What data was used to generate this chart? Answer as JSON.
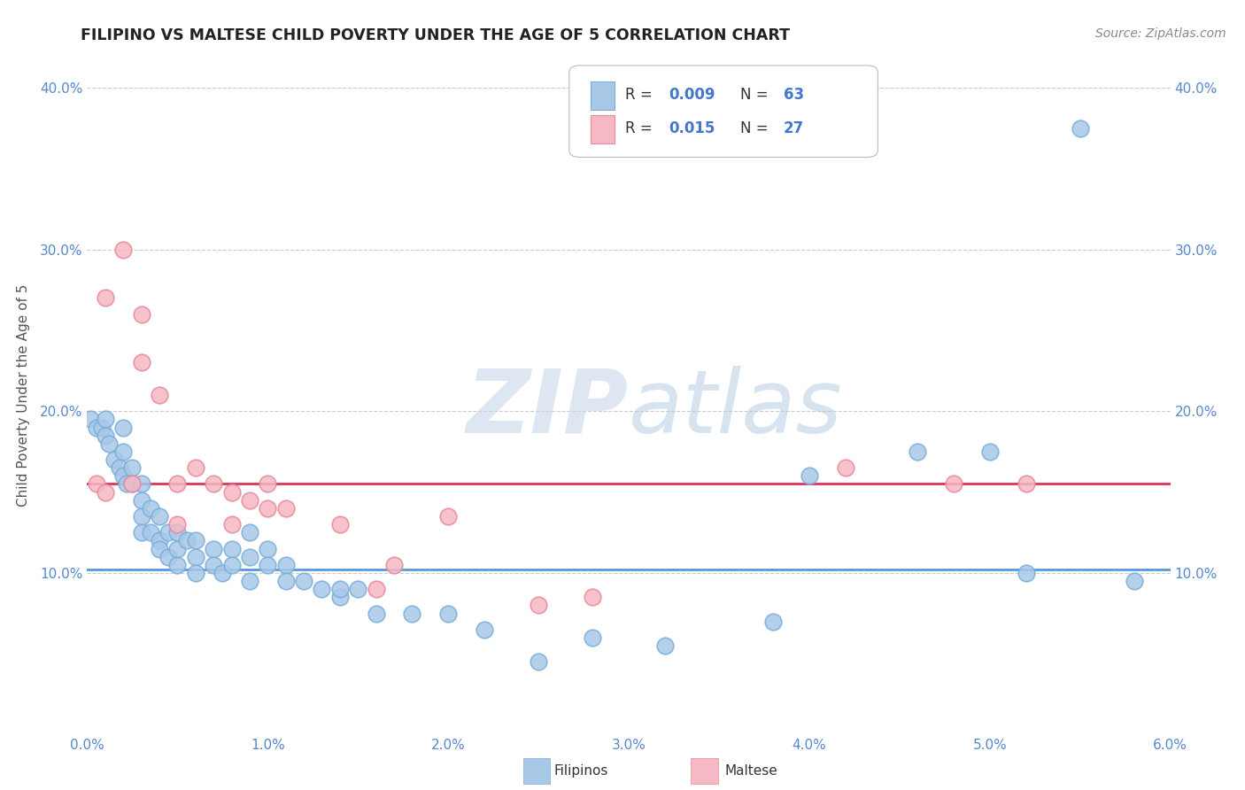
{
  "title": "FILIPINO VS MALTESE CHILD POVERTY UNDER THE AGE OF 5 CORRELATION CHART",
  "source": "Source: ZipAtlas.com",
  "ylabel": "Child Poverty Under the Age of 5",
  "xlim": [
    0.0,
    0.06
  ],
  "ylim": [
    0.0,
    0.42
  ],
  "xticks": [
    0.0,
    0.01,
    0.02,
    0.03,
    0.04,
    0.05,
    0.06
  ],
  "xtick_labels": [
    "0.0%",
    "1.0%",
    "2.0%",
    "3.0%",
    "4.0%",
    "5.0%",
    "6.0%"
  ],
  "yticks": [
    0.0,
    0.1,
    0.2,
    0.3,
    0.4
  ],
  "ytick_labels": [
    "",
    "10.0%",
    "20.0%",
    "30.0%",
    "40.0%"
  ],
  "filipino_color": "#a8c8e8",
  "maltese_color": "#f5b8c4",
  "filipino_edge": "#7aaed8",
  "maltese_edge": "#e8889a",
  "line_filipino_color": "#5599dd",
  "line_maltese_color": "#dd3355",
  "grid_color": "#cccccc",
  "watermark_color": "#c8d8e8",
  "legend_text_color": "#4477cc",
  "title_color": "#222222",
  "axis_label_color": "#555555",
  "tick_color": "#5588cc",
  "source_color": "#888888",
  "filipino_x": [
    0.0002,
    0.0005,
    0.0008,
    0.001,
    0.001,
    0.0012,
    0.0015,
    0.0018,
    0.002,
    0.002,
    0.002,
    0.0022,
    0.0025,
    0.0025,
    0.003,
    0.003,
    0.003,
    0.003,
    0.0035,
    0.0035,
    0.004,
    0.004,
    0.004,
    0.0045,
    0.0045,
    0.005,
    0.005,
    0.005,
    0.0055,
    0.006,
    0.006,
    0.006,
    0.007,
    0.007,
    0.0075,
    0.008,
    0.008,
    0.009,
    0.009,
    0.009,
    0.01,
    0.01,
    0.011,
    0.011,
    0.012,
    0.013,
    0.014,
    0.014,
    0.015,
    0.016,
    0.018,
    0.02,
    0.022,
    0.025,
    0.028,
    0.032,
    0.038,
    0.04,
    0.046,
    0.05,
    0.052,
    0.055,
    0.058
  ],
  "filipino_y": [
    0.195,
    0.19,
    0.19,
    0.185,
    0.195,
    0.18,
    0.17,
    0.165,
    0.19,
    0.175,
    0.16,
    0.155,
    0.165,
    0.155,
    0.155,
    0.145,
    0.135,
    0.125,
    0.14,
    0.125,
    0.135,
    0.12,
    0.115,
    0.125,
    0.11,
    0.125,
    0.115,
    0.105,
    0.12,
    0.12,
    0.11,
    0.1,
    0.115,
    0.105,
    0.1,
    0.115,
    0.105,
    0.125,
    0.11,
    0.095,
    0.115,
    0.105,
    0.105,
    0.095,
    0.095,
    0.09,
    0.085,
    0.09,
    0.09,
    0.075,
    0.075,
    0.075,
    0.065,
    0.045,
    0.06,
    0.055,
    0.07,
    0.16,
    0.175,
    0.175,
    0.1,
    0.375,
    0.095
  ],
  "maltese_x": [
    0.0005,
    0.001,
    0.001,
    0.002,
    0.0025,
    0.003,
    0.003,
    0.004,
    0.005,
    0.005,
    0.006,
    0.007,
    0.008,
    0.008,
    0.009,
    0.01,
    0.01,
    0.011,
    0.014,
    0.016,
    0.017,
    0.02,
    0.025,
    0.028,
    0.042,
    0.048,
    0.052
  ],
  "maltese_y": [
    0.155,
    0.27,
    0.15,
    0.3,
    0.155,
    0.26,
    0.23,
    0.21,
    0.155,
    0.13,
    0.165,
    0.155,
    0.15,
    0.13,
    0.145,
    0.155,
    0.14,
    0.14,
    0.13,
    0.09,
    0.105,
    0.135,
    0.08,
    0.085,
    0.165,
    0.155,
    0.155
  ],
  "line_filipino_y": 0.102,
  "line_maltese_y": 0.155
}
